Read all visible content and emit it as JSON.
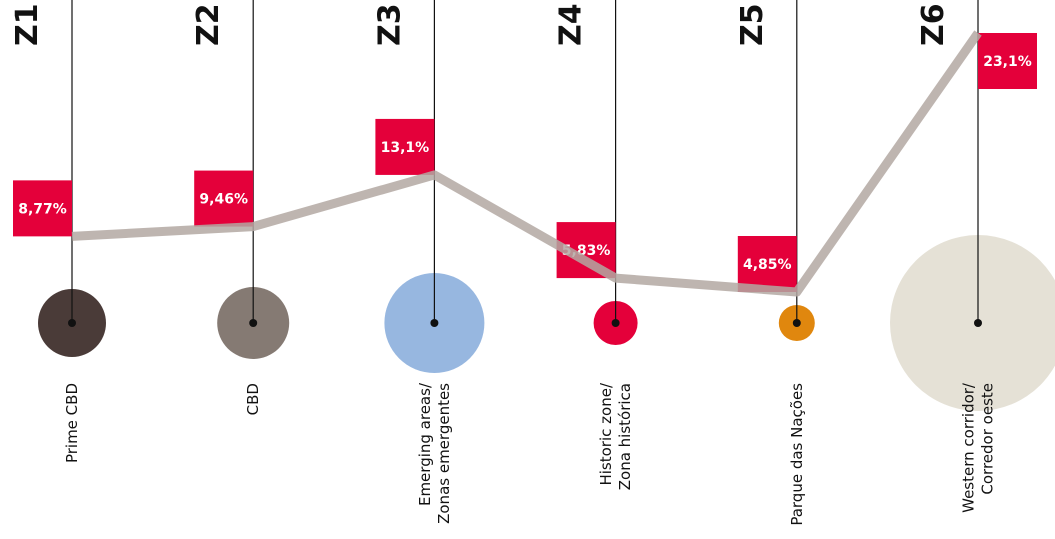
{
  "chart_data": {
    "type": "line",
    "categories": [
      "Z1",
      "Z2",
      "Z3",
      "Z4",
      "Z5",
      "Z6"
    ],
    "names": [
      [
        "Prime CBD"
      ],
      [
        "CBD"
      ],
      [
        "Emerging areas/",
        "Zonas emergentes"
      ],
      [
        "Historic zone/",
        "Zona histórica"
      ],
      [
        "Parque das Nações"
      ],
      [
        "Western corridor/",
        "Corredor oeste"
      ]
    ],
    "values": [
      8.77,
      9.46,
      13.1,
      5.83,
      4.85,
      23.1
    ],
    "value_labels": [
      "8,77%",
      "9,46%",
      "13,1%",
      "5,83%",
      "4,85%",
      "23,1%"
    ],
    "sizes": [
      34,
      36,
      50,
      22,
      18,
      88
    ],
    "colors": [
      "#4a3b38",
      "#857a73",
      "#97b7e0",
      "#e4003a",
      "#e0870e",
      "#e5e1d6"
    ],
    "color": "#b3a8a2",
    "label_color": "#e4003a"
  }
}
